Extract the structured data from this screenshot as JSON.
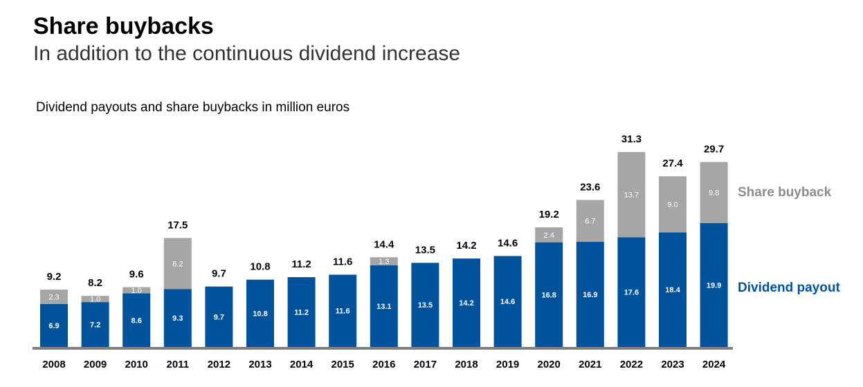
{
  "header": {
    "title": "Share buybacks",
    "subtitle": "In addition to the continuous dividend increase"
  },
  "chart_caption": "Dividend payouts and share buybacks in million euros",
  "colors": {
    "dividend": "#00529b",
    "buyback": "#a6a6a6",
    "axis": "#808080",
    "dividend_label": "#00529b",
    "buyback_label": "#8c8c8c"
  },
  "chart_data": {
    "type": "bar",
    "stacked": true,
    "title": "Dividend payouts and share buybacks in million euros",
    "xlabel": "",
    "ylabel": "",
    "ylim": [
      0,
      31.3
    ],
    "categories": [
      "2008",
      "2009",
      "2010",
      "2011",
      "2012",
      "2013",
      "2014",
      "2015",
      "2016",
      "2017",
      "2018",
      "2019",
      "2020",
      "2021",
      "2022",
      "2023",
      "2024"
    ],
    "series": [
      {
        "name": "Dividend payout",
        "values": [
          6.9,
          7.2,
          8.6,
          9.3,
          9.7,
          10.8,
          11.2,
          11.6,
          13.1,
          13.5,
          14.2,
          14.6,
          16.8,
          16.9,
          17.6,
          18.4,
          19.9
        ]
      },
      {
        "name": "Share buyback",
        "values": [
          2.3,
          1.0,
          1.0,
          8.2,
          null,
          null,
          null,
          null,
          1.3,
          null,
          null,
          null,
          2.4,
          6.7,
          13.7,
          9.0,
          9.8
        ]
      }
    ],
    "totals": [
      "9.2",
      "8.2",
      "9.6",
      "17.5",
      "9.7",
      "10.8",
      "11.2",
      "11.6",
      "14.4",
      "13.5",
      "14.2",
      "14.6",
      "19.2",
      "23.6",
      "31.3",
      "27.4",
      "29.7"
    ],
    "legend": [
      "Share buyback",
      "Dividend payout"
    ],
    "legend_position": "right"
  }
}
